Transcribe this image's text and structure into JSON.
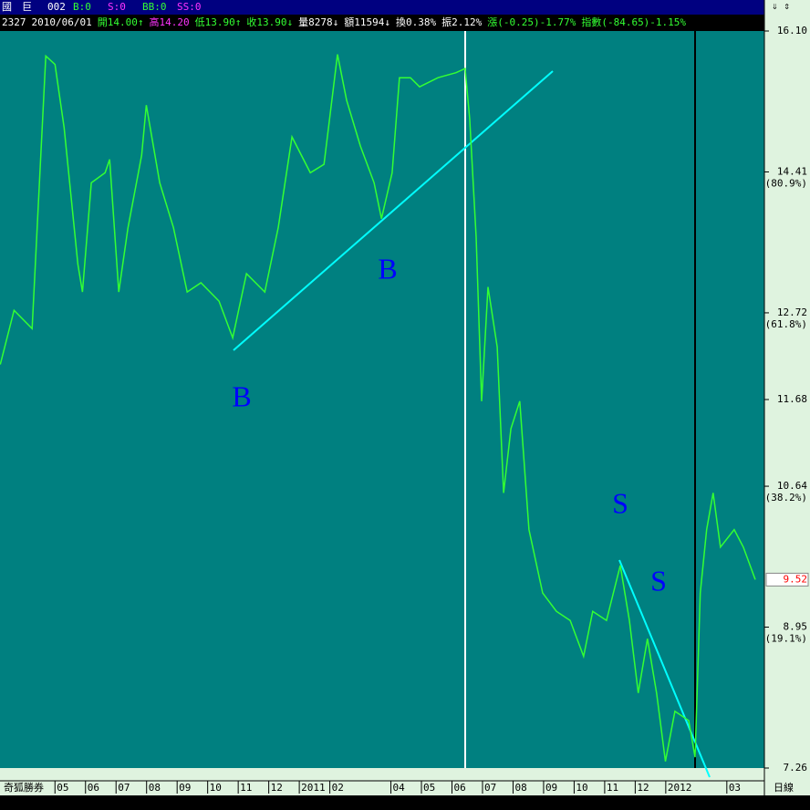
{
  "header": {
    "name": "國　巨",
    "code": "002",
    "flags": [
      "B:0",
      "S:0",
      "BB:0",
      "SS:0"
    ]
  },
  "quote": [
    "2327",
    "2010/06/01",
    "開14.00↑",
    "高14.20",
    "低13.90↑",
    "收13.90↓",
    "量8278↓",
    "額11594↓",
    "換0.38%",
    "振2.12%",
    "漲(-0.25)-1.77%",
    "指數(-84.65)-1.15%"
  ],
  "footer": {
    "brand": "奇狐勝券",
    "period": "日線"
  },
  "chart_data": {
    "type": "line",
    "annotations": [
      "B",
      "B",
      "S",
      "S"
    ],
    "series": [
      {
        "color": "#33ff33",
        "x": [
          -1.79,
          -1.34,
          -0.75,
          -0.3,
          0,
          0.3,
          0.75,
          0.9,
          1.19,
          1.64,
          1.79,
          2.09,
          2.39,
          2.84,
          2.99,
          3.43,
          3.88,
          4.33,
          4.78,
          5.37,
          5.82,
          6.27,
          6.87,
          7.31,
          7.76,
          8.36,
          8.81,
          9.25,
          9.55,
          10,
          10.45,
          10.69,
          11.04,
          11.28,
          11.64,
          11.94,
          12.54,
          13.13,
          13.43,
          13.58,
          13.79,
          13.97,
          14.18,
          14.48,
          14.69,
          14.93,
          15.22,
          15.52,
          15.97,
          16.42,
          16.87,
          17.31,
          17.61,
          18.06,
          18.51,
          18.81,
          19.1,
          19.4,
          19.7,
          19.99,
          20.3,
          20.75,
          20.96,
          21.13,
          21.34,
          21.55,
          21.79,
          22.24,
          22.54,
          22.93
        ],
        "values": [
          12.1,
          12.75,
          12.53,
          15.8,
          15.7,
          14.94,
          13.3,
          12.97,
          14.28,
          14.4,
          14.56,
          12.97,
          13.74,
          14.61,
          15.21,
          14.28,
          13.74,
          12.97,
          13.08,
          12.86,
          12.42,
          13.19,
          12.97,
          13.74,
          14.83,
          14.4,
          14.5,
          15.82,
          15.27,
          14.72,
          14.28,
          13.85,
          14.4,
          15.54,
          15.54,
          15.43,
          15.54,
          15.6,
          15.65,
          15.05,
          13.63,
          11.66,
          13.03,
          12.31,
          10.56,
          11.33,
          11.66,
          10.12,
          9.36,
          9.14,
          9.03,
          8.6,
          9.14,
          9.03,
          9.69,
          9.03,
          8.16,
          8.81,
          8.16,
          7.34,
          7.94,
          7.83,
          7.39,
          9.36,
          10.12,
          10.56,
          9.91,
          10.12,
          9.91,
          9.52
        ]
      }
    ],
    "xlim": [
      -1.8,
      23.2
    ],
    "xticks": [
      {
        "value": 0,
        "label": "05"
      },
      {
        "value": 1,
        "label": "06"
      },
      {
        "value": 2,
        "label": "07"
      },
      {
        "value": 3,
        "label": "08"
      },
      {
        "value": 4,
        "label": "09"
      },
      {
        "value": 5,
        "label": "10"
      },
      {
        "value": 6,
        "label": "11"
      },
      {
        "value": 7,
        "label": "12"
      },
      {
        "value": 8,
        "label": "2011"
      },
      {
        "value": 9,
        "label": "02"
      },
      {
        "value": 11,
        "label": "04"
      },
      {
        "value": 12,
        "label": "05"
      },
      {
        "value": 13,
        "label": "06"
      },
      {
        "value": 14,
        "label": "07"
      },
      {
        "value": 15,
        "label": "08"
      },
      {
        "value": 16,
        "label": "09"
      },
      {
        "value": 17,
        "label": "10"
      },
      {
        "value": 18,
        "label": "11"
      },
      {
        "value": 19,
        "label": "12"
      },
      {
        "value": 20,
        "label": "2012"
      },
      {
        "value": 22,
        "label": "03"
      }
    ],
    "ylim": [
      7.26,
      16.1
    ],
    "yticks": [
      {
        "value": 16.1,
        "label": "16.10"
      },
      14.41,
      12.72,
      11.68,
      10.64,
      8.95,
      7.26
    ],
    "retracement_labels": [
      {
        "value": 14.41,
        "label": "(80.9%)"
      },
      {
        "value": 12.72,
        "label": "(61.8%)"
      },
      {
        "value": 10.64,
        "label": "(38.2%)"
      },
      {
        "value": 8.95,
        "label": "(19.1%)"
      }
    ],
    "last_price": {
      "value": 9.52,
      "label": "9.52"
    }
  }
}
